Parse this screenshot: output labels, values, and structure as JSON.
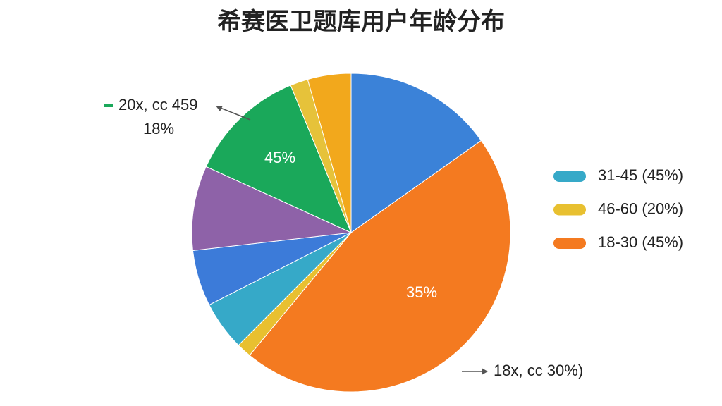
{
  "chart_data": {
    "type": "pie",
    "title": "希赛医卫题库用户年龄分布",
    "categories": [
      null,
      null,
      null,
      null,
      null,
      null,
      null,
      null,
      null
    ],
    "values": [
      15.2,
      45.8,
      1.5,
      5,
      5.7,
      8.6,
      12,
      1.8,
      4.4
    ],
    "colors": [
      "#3b82d8",
      "#f47a20",
      "#e8c030",
      "#36a9c8",
      "#3c7bd9",
      "#8e62a8",
      "#1aa85a",
      "#e6c23a",
      "#f2a81c"
    ],
    "legend": [
      {
        "name": "31-45 (45%)",
        "color": "#36a9c8"
      },
      {
        "name": "46-60 (20%)",
        "color": "#e8c030"
      },
      {
        "name": "18-30 (45%)",
        "color": "#f47a20"
      }
    ],
    "annotations": [
      "20x, cc 459",
      "18%",
      "45%",
      "35%",
      "18x, cc 30%)"
    ]
  }
}
